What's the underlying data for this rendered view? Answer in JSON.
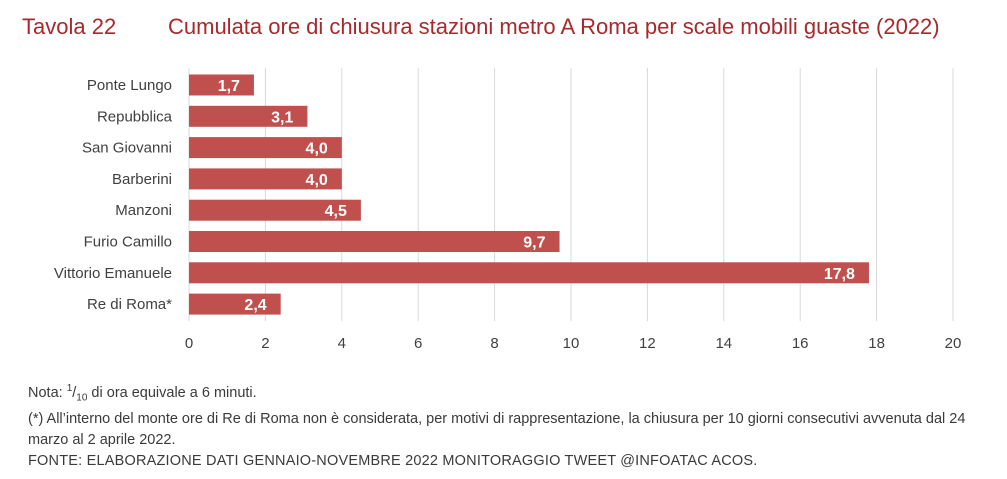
{
  "header": {
    "table_label": "Tavola 22",
    "title": "Cumulata ore di chiusura stazioni metro A Roma per scale mobili guaste (2022)"
  },
  "colors": {
    "bar": "#c0504d",
    "title": "#a8292c",
    "grid": "#d9d9d9",
    "text": "#404040"
  },
  "chart_data": {
    "type": "bar",
    "orientation": "horizontal",
    "title": "Cumulata ore di chiusura stazioni metro A Roma per scale mobili guaste (2022)",
    "categories": [
      "Ponte Lungo",
      "Repubblica",
      "San Giovanni",
      "Barberini",
      "Manzoni",
      "Furio Camillo",
      "Vittorio Emanuele",
      "Re di Roma*"
    ],
    "values": [
      1.7,
      3.1,
      4.0,
      4.0,
      4.5,
      9.7,
      17.8,
      2.4
    ],
    "value_labels": [
      "1,7",
      "3,1",
      "4,0",
      "4,0",
      "4,5",
      "9,7",
      "17,8",
      "2,4"
    ],
    "xlim": [
      0,
      20
    ],
    "xticks": [
      0,
      2,
      4,
      6,
      8,
      10,
      12,
      14,
      16,
      18,
      20
    ],
    "grid": true,
    "xlabel": "",
    "ylabel": ""
  },
  "notes": {
    "nota_prefix": "Nota: ",
    "nota_num": "1",
    "nota_den": "10",
    "nota_rest": " di ora equivale a 6 minuti.",
    "footnote": "(*) All’interno del monte ore di Re di Roma non è considerata, per motivi di rappresentazione, la chiusura per 10 giorni consecutivi avvenuta dal 24 marzo al 2 aprile 2022.",
    "source": "FONTE: ELABORAZIONE DATI GENNAIO-NOVEMBRE 2022 MONITORAGGIO TWEET @INFOATAC ACOS."
  }
}
